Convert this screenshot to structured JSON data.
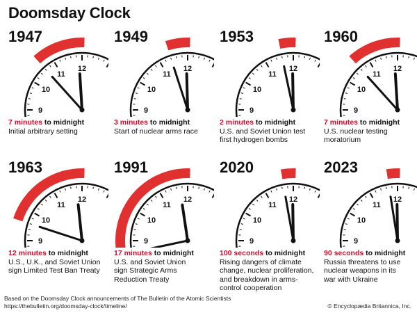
{
  "title": "Doomsday Clock",
  "colors": {
    "accent": "#c8102e",
    "arc": "#e03030",
    "ink": "#111111"
  },
  "panels": [
    {
      "year": "1947",
      "time_value": "7 minutes",
      "time_suffix": " to midnight",
      "lines": [
        "Initial arbitrary setting"
      ],
      "minutes_to_midnight": 7
    },
    {
      "year": "1949",
      "time_value": "3 minutes",
      "time_suffix": " to midnight",
      "lines": [
        "Start of nuclear arms race"
      ],
      "minutes_to_midnight": 3
    },
    {
      "year": "1953",
      "time_value": "2 minutes",
      "time_suffix": " to midnight",
      "lines": [
        "U.S. and Soviet Union test",
        "first hydrogen bombs"
      ],
      "minutes_to_midnight": 2
    },
    {
      "year": "1960",
      "time_value": "7 minutes",
      "time_suffix": " to midnight",
      "lines": [
        "U.S. nuclear testing",
        "moratorium"
      ],
      "minutes_to_midnight": 7
    },
    {
      "year": "1963",
      "time_value": "12 minutes",
      "time_suffix": " to midnight",
      "lines": [
        "U.S., U.K., and Soviet Union",
        "sign Limited Test Ban Treaty"
      ],
      "minutes_to_midnight": 12
    },
    {
      "year": "1991",
      "time_value": "17 minutes",
      "time_suffix": " to midnight",
      "lines": [
        "U.S. and Soviet Union",
        "sign Strategic Arms",
        "Reduction Treaty"
      ],
      "minutes_to_midnight": 17
    },
    {
      "year": "2020",
      "time_value": "100 seconds",
      "time_suffix": " to midnight",
      "lines": [
        "Rising dangers of climate",
        "change, nuclear proliferation,",
        "and breakdown in arms-",
        "control cooperation"
      ],
      "minutes_to_midnight": 1.67
    },
    {
      "year": "2023",
      "time_value": "90 seconds",
      "time_suffix": " to midnight",
      "lines": [
        "Russia threatens to use",
        "nuclear weapons in its",
        "war with Ukraine"
      ],
      "minutes_to_midnight": 1.5
    }
  ],
  "clock_numerals": [
    "9",
    "10",
    "11",
    "12"
  ],
  "footer": {
    "line1": "Based on the Doomsday Clock announcements of The Bulletin of the Atomic Scientists",
    "line2": "https://thebulletin.org/doomsday-clock/timeline/"
  },
  "credit": "© Encyclopædia Britannica, Inc."
}
